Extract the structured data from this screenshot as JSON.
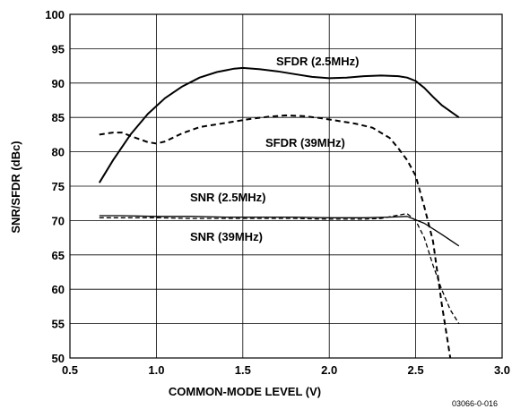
{
  "chart_data": {
    "type": "line",
    "xlabel": "COMMON-MODE LEVEL (V)",
    "ylabel": "SNR/SFDR (dBc)",
    "xlim": [
      0.5,
      3.0
    ],
    "ylim": [
      50,
      100
    ],
    "x_ticks": [
      "0.5",
      "1.0",
      "1.5",
      "2.0",
      "2.5",
      "3.0"
    ],
    "y_ticks": [
      "50",
      "55",
      "60",
      "65",
      "70",
      "75",
      "80",
      "85",
      "90",
      "95",
      "100"
    ],
    "grid": true,
    "legend": "none",
    "series": [
      {
        "name": "SFDR (2.5MHz)",
        "style": "solid",
        "x": [
          0.67,
          0.75,
          0.85,
          0.95,
          1.05,
          1.15,
          1.25,
          1.35,
          1.45,
          1.5,
          1.6,
          1.7,
          1.8,
          1.9,
          2.0,
          2.1,
          2.2,
          2.3,
          2.4,
          2.45,
          2.5,
          2.55,
          2.6,
          2.65,
          2.75
        ],
        "y": [
          75.5,
          78.8,
          82.5,
          85.5,
          87.8,
          89.5,
          90.8,
          91.6,
          92.1,
          92.2,
          92.0,
          91.7,
          91.3,
          90.9,
          90.7,
          90.8,
          91.0,
          91.1,
          91.0,
          90.8,
          90.3,
          89.3,
          88.0,
          86.8,
          85.0
        ]
      },
      {
        "name": "SFDR (39MHz)",
        "style": "dashed",
        "x": [
          0.67,
          0.75,
          0.8,
          0.85,
          0.95,
          1.0,
          1.05,
          1.15,
          1.25,
          1.35,
          1.45,
          1.55,
          1.65,
          1.75,
          1.85,
          1.95,
          2.05,
          2.15,
          2.25,
          2.35,
          2.4,
          2.45,
          2.5,
          2.55,
          2.6,
          2.65,
          2.7
        ],
        "y": [
          82.5,
          82.8,
          82.8,
          82.3,
          81.4,
          81.2,
          81.5,
          82.7,
          83.6,
          84.0,
          84.4,
          84.8,
          85.1,
          85.3,
          85.2,
          84.9,
          84.5,
          84.1,
          83.5,
          82.0,
          80.5,
          78.8,
          76.5,
          72.0,
          67.0,
          58.0,
          50.0
        ]
      },
      {
        "name": "SNR (2.5MHz)",
        "style": "solid",
        "x": [
          0.67,
          0.8,
          1.0,
          1.2,
          1.4,
          1.6,
          1.8,
          2.0,
          2.2,
          2.35,
          2.45,
          2.55,
          2.65,
          2.75
        ],
        "y": [
          70.7,
          70.7,
          70.6,
          70.6,
          70.5,
          70.5,
          70.5,
          70.4,
          70.4,
          70.5,
          70.6,
          69.6,
          68.0,
          66.3
        ]
      },
      {
        "name": "SNR (39MHz)",
        "style": "dashed",
        "x": [
          0.67,
          0.8,
          1.0,
          1.2,
          1.4,
          1.6,
          1.8,
          2.0,
          2.2,
          2.3,
          2.4,
          2.45,
          2.5,
          2.55,
          2.6,
          2.65,
          2.7,
          2.75
        ],
        "y": [
          70.4,
          70.4,
          70.4,
          70.3,
          70.3,
          70.3,
          70.3,
          70.2,
          70.2,
          70.3,
          70.8,
          71.0,
          70.0,
          67.5,
          63.5,
          60.0,
          57.0,
          55.0
        ]
      }
    ]
  },
  "labels": {
    "sfdr_25": "SFDR (2.5MHz)",
    "sfdr_39": "SFDR (39MHz)",
    "snr_25": "SNR (2.5MHz)",
    "snr_39": "SNR (39MHz)",
    "figure_code": "03066-0-016"
  }
}
